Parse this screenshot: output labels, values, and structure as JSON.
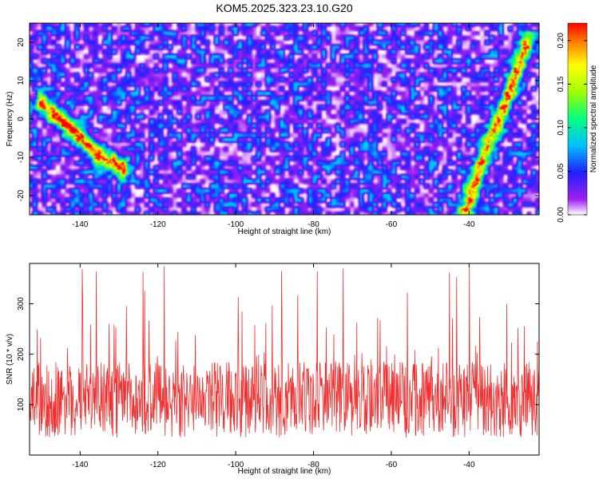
{
  "title": "KOM5.2025.323.23.10.G20",
  "colors": {
    "snr_line": "#f03030",
    "axis": "#000000",
    "background": "#ffffff",
    "colormap": [
      "#ffffff",
      "#a020f0",
      "#2020ff",
      "#00c0ff",
      "#00ff80",
      "#a0ff00",
      "#ffff00",
      "#ff8000",
      "#ff0000"
    ]
  },
  "chart_data": [
    {
      "type": "heatmap",
      "name": "spectrogram",
      "title": "KOM5.2025.323.23.10.G20",
      "xlabel": "Height of straight line (km)",
      "ylabel": "Frequency (Hz)",
      "xlim": [
        -153,
        -22
      ],
      "ylim": [
        -25,
        25
      ],
      "xticks": [
        -140,
        -120,
        -100,
        -80,
        -60,
        -40
      ],
      "yticks": [
        -20,
        -10,
        0,
        10,
        20
      ],
      "colorbar": {
        "label": "Normalized spectral amplitude",
        "range": [
          0,
          0.22
        ],
        "ticks": [
          0.0,
          0.05,
          0.1,
          0.15,
          0.2
        ],
        "tick_labels": [
          "0.00",
          "0.05",
          "0.10",
          "0.15",
          "0.20"
        ]
      },
      "features": [
        {
          "name": "left streak",
          "x": [
            -150,
            -145,
            -140,
            -135,
            -129
          ],
          "y": [
            4,
            0,
            -5,
            -10,
            -13
          ],
          "peak": 0.22
        },
        {
          "name": "right streak",
          "x": [
            -41,
            -37,
            -33,
            -29,
            -25
          ],
          "y": [
            -25,
            -13,
            -2,
            8,
            20
          ],
          "peak": 0.21
        }
      ],
      "background_level": 0.04
    },
    {
      "type": "line",
      "name": "snr",
      "xlabel": "Height of straight line (km)",
      "ylabel": "SNR (10 * v/v)",
      "xlim": [
        -153,
        -22
      ],
      "ylim": [
        0,
        380
      ],
      "xticks": [
        -140,
        -120,
        -100,
        -80,
        -60,
        -40
      ],
      "yticks": [
        100,
        200,
        300
      ],
      "series": [
        {
          "name": "SNR",
          "mean": 110,
          "min": 25,
          "max": 380,
          "samples": 1200
        }
      ]
    }
  ]
}
